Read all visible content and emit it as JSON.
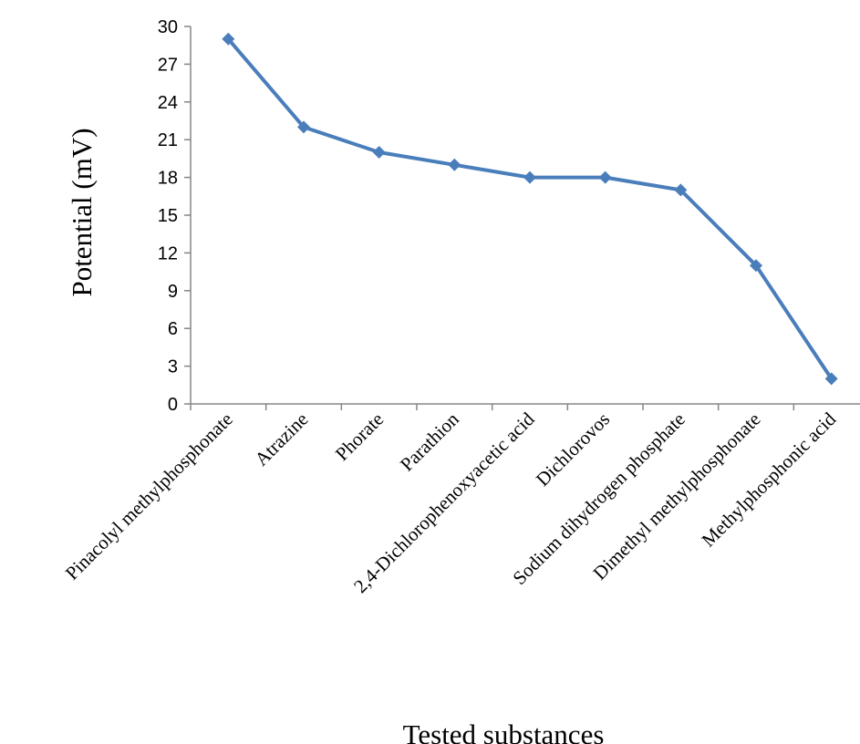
{
  "chart_data": {
    "type": "line",
    "title": "",
    "xlabel": "Tested substances",
    "ylabel": "Potential (mV)",
    "ylim": [
      0,
      30
    ],
    "yticks": [
      0,
      3,
      6,
      9,
      12,
      15,
      18,
      21,
      24,
      27,
      30
    ],
    "grid": false,
    "legend": "none",
    "marker": "diamond",
    "color": "#4a7ebb",
    "categories": [
      "Pinacolyl methylphosphonate",
      "Atrazine",
      "Phorate",
      "Parathion",
      "2,4-Dichlorophenoxyacetic acid",
      "Dichlorovos",
      "Sodium dihydrogen phosphate",
      "Dimethyl methylphosphonate",
      "Methylphosphonic acid"
    ],
    "series": [
      {
        "values": [
          29,
          22,
          20,
          19,
          18,
          18,
          17,
          11,
          2
        ]
      }
    ]
  }
}
